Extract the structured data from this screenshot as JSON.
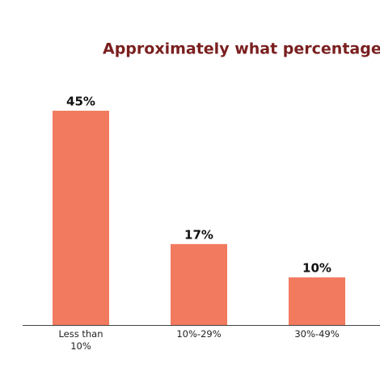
{
  "chart_data": {
    "type": "bar",
    "title": "Approximately what percentage o",
    "categories": [
      "Less than 10%",
      "10%-29%",
      "30%-49%"
    ],
    "values": [
      45,
      17,
      10
    ],
    "value_labels": [
      "45%",
      "17%",
      "10%"
    ],
    "color": "#f27a5e",
    "title_color": "#7a1f1f"
  }
}
